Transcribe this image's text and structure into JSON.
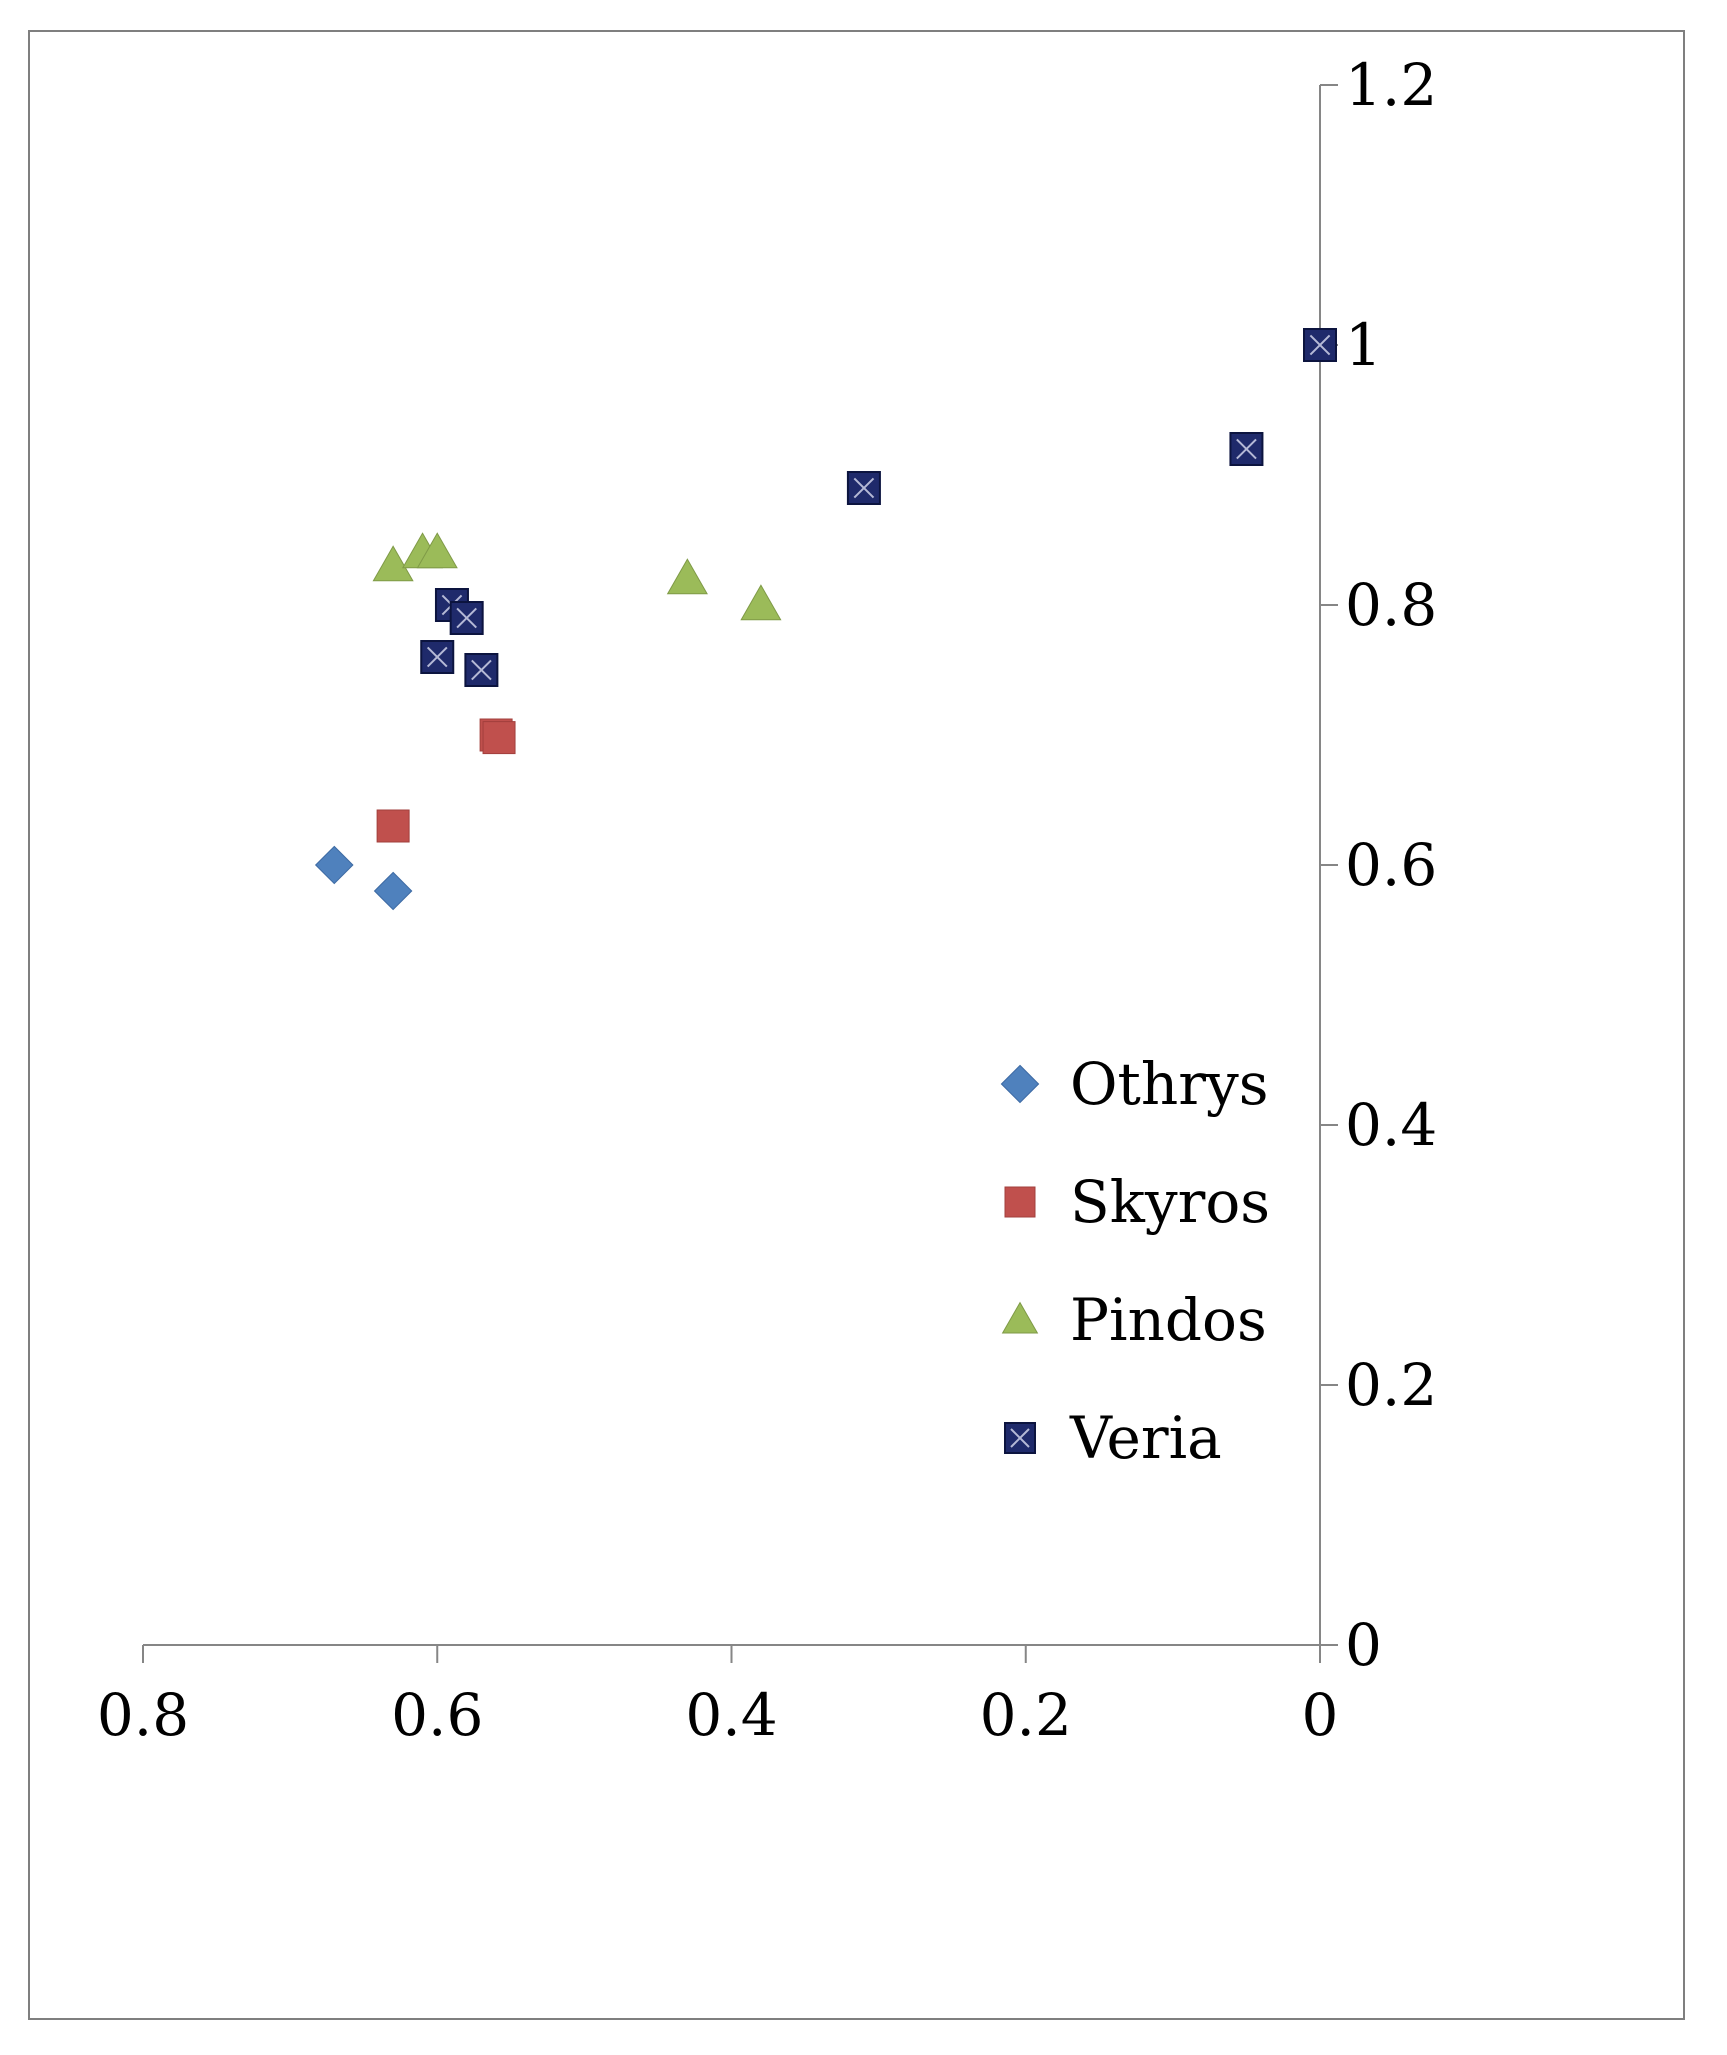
{
  "chart_data": {
    "type": "scatter",
    "title": "",
    "xlabel": "",
    "ylabel": "",
    "x_reversed": true,
    "xlim": [
      0,
      0.8
    ],
    "ylim": [
      0,
      1.2
    ],
    "x_ticks": [
      0.8,
      0.6,
      0.4,
      0.2,
      0
    ],
    "x_tick_labels": [
      "0.8",
      "0.6",
      "0.4",
      "0.2",
      "0"
    ],
    "y_ticks": [
      0,
      0.2,
      0.4,
      0.6,
      0.8,
      1,
      1.2
    ],
    "y_tick_labels": [
      "0",
      "0.2",
      "0.4",
      "0.6",
      "0.8",
      "1",
      "1.2"
    ],
    "grid": false,
    "legend_position": "right-center",
    "series": [
      {
        "name": "Othrys",
        "marker": "diamond",
        "color": "#4f81bd",
        "points": [
          [
            0.67,
            0.6
          ],
          [
            0.63,
            0.58
          ]
        ]
      },
      {
        "name": "Skyros",
        "marker": "square",
        "color": "#c0504d",
        "points": [
          [
            0.63,
            0.63
          ],
          [
            0.56,
            0.7
          ],
          [
            0.558,
            0.698
          ]
        ]
      },
      {
        "name": "Pindos",
        "marker": "triangle",
        "color": "#9bbb59",
        "points": [
          [
            0.63,
            0.83
          ],
          [
            0.61,
            0.84
          ],
          [
            0.6,
            0.84
          ],
          [
            0.43,
            0.82
          ],
          [
            0.38,
            0.8
          ]
        ]
      },
      {
        "name": "Veria",
        "marker": "x-square",
        "color": "#1f2a6b",
        "points": [
          [
            0.0,
            1.0
          ],
          [
            0.05,
            0.92
          ],
          [
            0.31,
            0.89
          ],
          [
            0.59,
            0.8
          ],
          [
            0.58,
            0.79
          ],
          [
            0.6,
            0.76
          ],
          [
            0.57,
            0.75
          ]
        ]
      }
    ]
  }
}
